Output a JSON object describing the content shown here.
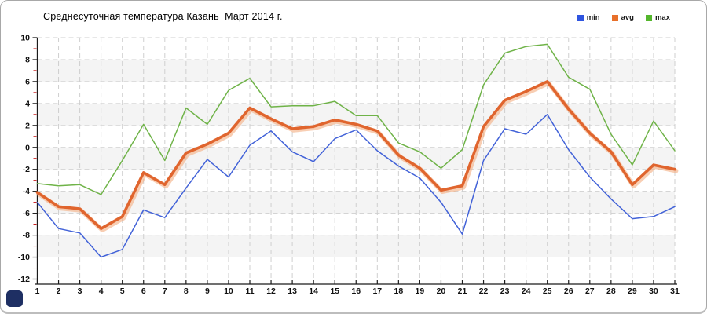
{
  "title": "Среднесуточная температура Казань  Март 2014 г.",
  "legend": {
    "items": [
      {
        "label": "min",
        "color": "#2f55e0"
      },
      {
        "label": "avg",
        "color": "#e8702a"
      },
      {
        "label": "max",
        "color": "#54b62c"
      }
    ],
    "position": "top-right"
  },
  "colors": {
    "grid": "#cfcfcf",
    "band": "#f4f4f4",
    "axis": "#1a1a1a",
    "minor_tick": "#c00000",
    "avg_halo": "#f3ad80"
  },
  "chart_data": {
    "type": "line",
    "title": "Среднесуточная температура Казань  Март 2014 г.",
    "xlabel": "",
    "ylabel": "",
    "x": [
      1,
      2,
      3,
      4,
      5,
      6,
      7,
      8,
      9,
      10,
      11,
      12,
      13,
      14,
      15,
      16,
      17,
      18,
      19,
      20,
      21,
      22,
      23,
      24,
      25,
      26,
      27,
      28,
      29,
      30,
      31
    ],
    "ylim": [
      -12,
      10
    ],
    "ytick_step": 2,
    "grid": true,
    "legend_position": "top-right",
    "series": [
      {
        "name": "min",
        "color": "#4262d8",
        "width": 1.5,
        "values": [
          -5.0,
          -7.4,
          -7.8,
          -10.0,
          -9.3,
          -5.7,
          -6.4,
          -3.7,
          -1.1,
          -2.7,
          0.2,
          1.5,
          -0.4,
          -1.3,
          0.8,
          1.6,
          -0.3,
          -1.7,
          -2.8,
          -5.0,
          -7.9,
          -1.2,
          1.7,
          1.2,
          3.0,
          -0.2,
          -2.7,
          -4.7,
          -6.5,
          -6.3,
          -5.4
        ]
      },
      {
        "name": "avg",
        "color": "#e0652e",
        "width": 3.6,
        "values": [
          -4.1,
          -5.4,
          -5.6,
          -7.4,
          -6.3,
          -2.3,
          -3.4,
          -0.5,
          0.3,
          1.3,
          3.6,
          2.6,
          1.7,
          1.9,
          2.5,
          2.1,
          1.5,
          -0.7,
          -1.9,
          -3.9,
          -3.5,
          1.9,
          4.3,
          5.1,
          6.0,
          3.5,
          1.3,
          -0.4,
          -3.4,
          -1.6,
          -2.0
        ]
      },
      {
        "name": "max",
        "color": "#6fb348",
        "width": 1.5,
        "values": [
          -3.3,
          -3.5,
          -3.4,
          -4.3,
          -1.2,
          2.1,
          -1.2,
          3.6,
          2.1,
          5.2,
          6.3,
          3.7,
          3.8,
          3.8,
          4.2,
          2.9,
          2.9,
          0.4,
          -0.4,
          -1.9,
          -0.2,
          5.7,
          8.6,
          9.2,
          9.4,
          6.4,
          5.3,
          1.2,
          -1.6,
          2.4,
          -0.3
        ]
      }
    ]
  }
}
